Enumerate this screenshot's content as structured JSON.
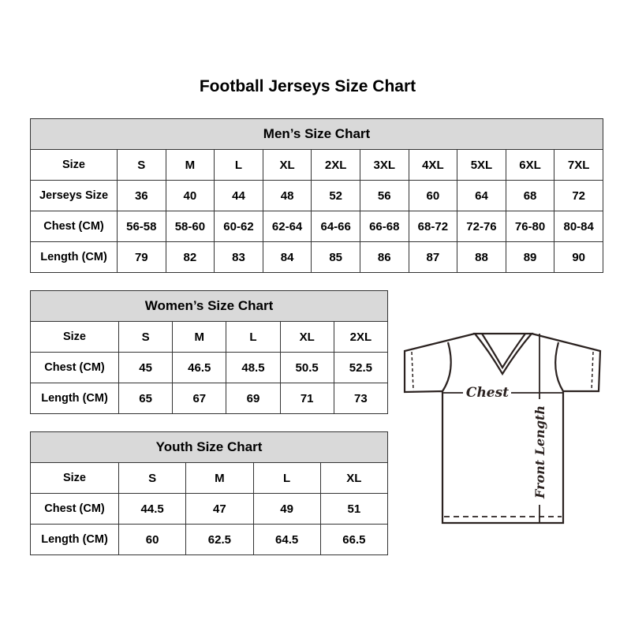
{
  "title": "Football Jerseys Size Chart",
  "men": {
    "caption": "Men’s Size Chart",
    "rows": [
      {
        "label": "Size",
        "values": [
          "S",
          "M",
          "L",
          "XL",
          "2XL",
          "3XL",
          "4XL",
          "5XL",
          "6XL",
          "7XL"
        ]
      },
      {
        "label": "Jerseys Size",
        "values": [
          "36",
          "40",
          "44",
          "48",
          "52",
          "56",
          "60",
          "64",
          "68",
          "72"
        ]
      },
      {
        "label": "Chest (CM)",
        "values": [
          "56-58",
          "58-60",
          "60-62",
          "62-64",
          "64-66",
          "66-68",
          "68-72",
          "72-76",
          "76-80",
          "80-84"
        ]
      },
      {
        "label": "Length (CM)",
        "values": [
          "79",
          "82",
          "83",
          "84",
          "85",
          "86",
          "87",
          "88",
          "89",
          "90"
        ]
      }
    ]
  },
  "women": {
    "caption": "Women’s Size Chart",
    "rows": [
      {
        "label": "Size",
        "values": [
          "S",
          "M",
          "L",
          "XL",
          "2XL"
        ]
      },
      {
        "label": "Chest (CM)",
        "values": [
          "45",
          "46.5",
          "48.5",
          "50.5",
          "52.5"
        ]
      },
      {
        "label": "Length (CM)",
        "values": [
          "65",
          "67",
          "69",
          "71",
          "73"
        ]
      }
    ]
  },
  "youth": {
    "caption": "Youth Size Chart",
    "rows": [
      {
        "label": "Size",
        "values": [
          "S",
          "M",
          "L",
          "XL"
        ]
      },
      {
        "label": "Chest (CM)",
        "values": [
          "44.5",
          "47",
          "49",
          "51"
        ]
      },
      {
        "label": "Length (CM)",
        "values": [
          "60",
          "62.5",
          "64.5",
          "66.5"
        ]
      }
    ]
  },
  "diagram": {
    "chest": "Chest",
    "front_length": "Front Length"
  },
  "colors": {
    "header_fill": "#d9d9d9",
    "line": "#2b2220"
  }
}
